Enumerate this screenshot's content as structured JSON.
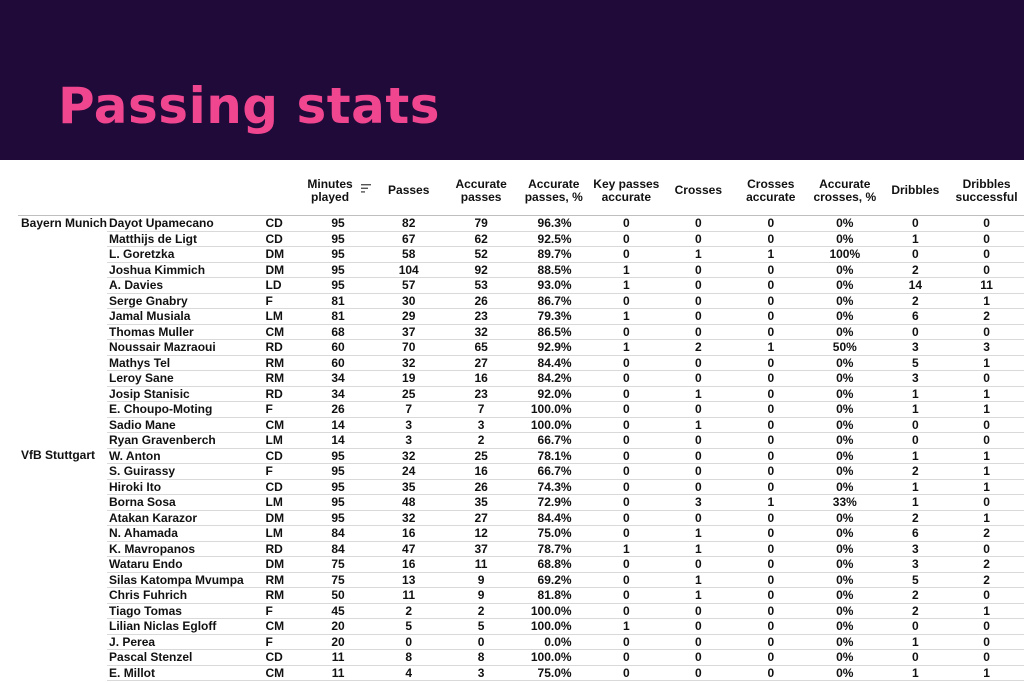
{
  "title": "Passing stats",
  "colors": {
    "header_bg": "#1f0a3a",
    "title": "#f0468f"
  },
  "columns": {
    "minutes": "Minutes played",
    "passes": "Passes",
    "accurate_passes": "Accurate passes",
    "accurate_passes_pct": "Accurate passes, %",
    "key_passes": "Key passes accurate",
    "crosses": "Crosses",
    "crosses_accurate": "Crosses accurate",
    "accurate_crosses_pct": "Accurate crosses, %",
    "dribbles": "Dribbles",
    "dribbles_successful": "Dribbles successful"
  },
  "sort_icon": "sort-descending-icon",
  "teams": [
    {
      "name": "Bayern Munich",
      "players": [
        {
          "name": "Dayot Upamecano",
          "pos": "CD",
          "min": "95",
          "passes": "82",
          "acc": "79",
          "acc_pct": "96.3%",
          "key": "0",
          "crosses": "0",
          "cross_acc": "0",
          "cross_pct": "0%",
          "drib": "0",
          "drib_succ": "0"
        },
        {
          "name": "Matthijs de Ligt",
          "pos": "CD",
          "min": "95",
          "passes": "67",
          "acc": "62",
          "acc_pct": "92.5%",
          "key": "0",
          "crosses": "0",
          "cross_acc": "0",
          "cross_pct": "0%",
          "drib": "1",
          "drib_succ": "0"
        },
        {
          "name": "L. Goretzka",
          "pos": "DM",
          "min": "95",
          "passes": "58",
          "acc": "52",
          "acc_pct": "89.7%",
          "key": "0",
          "crosses": "1",
          "cross_acc": "1",
          "cross_pct": "100%",
          "drib": "0",
          "drib_succ": "0"
        },
        {
          "name": "Joshua Kimmich",
          "pos": "DM",
          "min": "95",
          "passes": "104",
          "acc": "92",
          "acc_pct": "88.5%",
          "key": "1",
          "crosses": "0",
          "cross_acc": "0",
          "cross_pct": "0%",
          "drib": "2",
          "drib_succ": "0"
        },
        {
          "name": "A. Davies",
          "pos": "LD",
          "min": "95",
          "passes": "57",
          "acc": "53",
          "acc_pct": "93.0%",
          "key": "1",
          "crosses": "0",
          "cross_acc": "0",
          "cross_pct": "0%",
          "drib": "14",
          "drib_succ": "11"
        },
        {
          "name": "Serge Gnabry",
          "pos": "F",
          "min": "81",
          "passes": "30",
          "acc": "26",
          "acc_pct": "86.7%",
          "key": "0",
          "crosses": "0",
          "cross_acc": "0",
          "cross_pct": "0%",
          "drib": "2",
          "drib_succ": "1"
        },
        {
          "name": "Jamal Musiala",
          "pos": "LM",
          "min": "81",
          "passes": "29",
          "acc": "23",
          "acc_pct": "79.3%",
          "key": "1",
          "crosses": "0",
          "cross_acc": "0",
          "cross_pct": "0%",
          "drib": "6",
          "drib_succ": "2"
        },
        {
          "name": "Thomas Muller",
          "pos": "CM",
          "min": "68",
          "passes": "37",
          "acc": "32",
          "acc_pct": "86.5%",
          "key": "0",
          "crosses": "0",
          "cross_acc": "0",
          "cross_pct": "0%",
          "drib": "0",
          "drib_succ": "0"
        },
        {
          "name": "Noussair Mazraoui",
          "pos": "RD",
          "min": "60",
          "passes": "70",
          "acc": "65",
          "acc_pct": "92.9%",
          "key": "1",
          "crosses": "2",
          "cross_acc": "1",
          "cross_pct": "50%",
          "drib": "3",
          "drib_succ": "3"
        },
        {
          "name": "Mathys Tel",
          "pos": "RM",
          "min": "60",
          "passes": "32",
          "acc": "27",
          "acc_pct": "84.4%",
          "key": "0",
          "crosses": "0",
          "cross_acc": "0",
          "cross_pct": "0%",
          "drib": "5",
          "drib_succ": "1"
        },
        {
          "name": "Leroy Sane",
          "pos": "RM",
          "min": "34",
          "passes": "19",
          "acc": "16",
          "acc_pct": "84.2%",
          "key": "0",
          "crosses": "0",
          "cross_acc": "0",
          "cross_pct": "0%",
          "drib": "3",
          "drib_succ": "0"
        },
        {
          "name": "Josip Stanisic",
          "pos": "RD",
          "min": "34",
          "passes": "25",
          "acc": "23",
          "acc_pct": "92.0%",
          "key": "0",
          "crosses": "1",
          "cross_acc": "0",
          "cross_pct": "0%",
          "drib": "1",
          "drib_succ": "1"
        },
        {
          "name": "E. Choupo-Moting",
          "pos": "F",
          "min": "26",
          "passes": "7",
          "acc": "7",
          "acc_pct": "100.0%",
          "key": "0",
          "crosses": "0",
          "cross_acc": "0",
          "cross_pct": "0%",
          "drib": "1",
          "drib_succ": "1"
        },
        {
          "name": "Sadio Mane",
          "pos": "CM",
          "min": "14",
          "passes": "3",
          "acc": "3",
          "acc_pct": "100.0%",
          "key": "0",
          "crosses": "1",
          "cross_acc": "0",
          "cross_pct": "0%",
          "drib": "0",
          "drib_succ": "0"
        },
        {
          "name": "Ryan Gravenberch",
          "pos": "LM",
          "min": "14",
          "passes": "3",
          "acc": "2",
          "acc_pct": "66.7%",
          "key": "0",
          "crosses": "0",
          "cross_acc": "0",
          "cross_pct": "0%",
          "drib": "0",
          "drib_succ": "0"
        }
      ]
    },
    {
      "name": "VfB Stuttgart",
      "players": [
        {
          "name": "W. Anton",
          "pos": "CD",
          "min": "95",
          "passes": "32",
          "acc": "25",
          "acc_pct": "78.1%",
          "key": "0",
          "crosses": "0",
          "cross_acc": "0",
          "cross_pct": "0%",
          "drib": "1",
          "drib_succ": "1"
        },
        {
          "name": "S. Guirassy",
          "pos": "F",
          "min": "95",
          "passes": "24",
          "acc": "16",
          "acc_pct": "66.7%",
          "key": "0",
          "crosses": "0",
          "cross_acc": "0",
          "cross_pct": "0%",
          "drib": "2",
          "drib_succ": "1"
        },
        {
          "name": "Hiroki Ito",
          "pos": "CD",
          "min": "95",
          "passes": "35",
          "acc": "26",
          "acc_pct": "74.3%",
          "key": "0",
          "crosses": "0",
          "cross_acc": "0",
          "cross_pct": "0%",
          "drib": "1",
          "drib_succ": "1"
        },
        {
          "name": "Borna Sosa",
          "pos": "LM",
          "min": "95",
          "passes": "48",
          "acc": "35",
          "acc_pct": "72.9%",
          "key": "0",
          "crosses": "3",
          "cross_acc": "1",
          "cross_pct": "33%",
          "drib": "1",
          "drib_succ": "0"
        },
        {
          "name": "Atakan Karazor",
          "pos": "DM",
          "min": "95",
          "passes": "32",
          "acc": "27",
          "acc_pct": "84.4%",
          "key": "0",
          "crosses": "0",
          "cross_acc": "0",
          "cross_pct": "0%",
          "drib": "2",
          "drib_succ": "1"
        },
        {
          "name": "N. Ahamada",
          "pos": "LM",
          "min": "84",
          "passes": "16",
          "acc": "12",
          "acc_pct": "75.0%",
          "key": "0",
          "crosses": "1",
          "cross_acc": "0",
          "cross_pct": "0%",
          "drib": "6",
          "drib_succ": "2"
        },
        {
          "name": "K. Mavropanos",
          "pos": "RD",
          "min": "84",
          "passes": "47",
          "acc": "37",
          "acc_pct": "78.7%",
          "key": "1",
          "crosses": "1",
          "cross_acc": "0",
          "cross_pct": "0%",
          "drib": "3",
          "drib_succ": "0"
        },
        {
          "name": "Wataru Endo",
          "pos": "DM",
          "min": "75",
          "passes": "16",
          "acc": "11",
          "acc_pct": "68.8%",
          "key": "0",
          "crosses": "0",
          "cross_acc": "0",
          "cross_pct": "0%",
          "drib": "3",
          "drib_succ": "2"
        },
        {
          "name": "Silas Katompa Mvumpa",
          "pos": "RM",
          "min": "75",
          "passes": "13",
          "acc": "9",
          "acc_pct": "69.2%",
          "key": "0",
          "crosses": "1",
          "cross_acc": "0",
          "cross_pct": "0%",
          "drib": "5",
          "drib_succ": "2"
        },
        {
          "name": "Chris Fuhrich",
          "pos": "RM",
          "min": "50",
          "passes": "11",
          "acc": "9",
          "acc_pct": "81.8%",
          "key": "0",
          "crosses": "1",
          "cross_acc": "0",
          "cross_pct": "0%",
          "drib": "2",
          "drib_succ": "0"
        },
        {
          "name": "Tiago Tomas",
          "pos": "F",
          "min": "45",
          "passes": "2",
          "acc": "2",
          "acc_pct": "100.0%",
          "key": "0",
          "crosses": "0",
          "cross_acc": "0",
          "cross_pct": "0%",
          "drib": "2",
          "drib_succ": "1"
        },
        {
          "name": "Lilian Niclas Egloff",
          "pos": "CM",
          "min": "20",
          "passes": "5",
          "acc": "5",
          "acc_pct": "100.0%",
          "key": "1",
          "crosses": "0",
          "cross_acc": "0",
          "cross_pct": "0%",
          "drib": "0",
          "drib_succ": "0"
        },
        {
          "name": "J. Perea",
          "pos": "F",
          "min": "20",
          "passes": "0",
          "acc": "0",
          "acc_pct": "0.0%",
          "key": "0",
          "crosses": "0",
          "cross_acc": "0",
          "cross_pct": "0%",
          "drib": "1",
          "drib_succ": "0"
        },
        {
          "name": "Pascal Stenzel",
          "pos": "CD",
          "min": "11",
          "passes": "8",
          "acc": "8",
          "acc_pct": "100.0%",
          "key": "0",
          "crosses": "0",
          "cross_acc": "0",
          "cross_pct": "0%",
          "drib": "0",
          "drib_succ": "0"
        },
        {
          "name": "E. Millot",
          "pos": "CM",
          "min": "11",
          "passes": "4",
          "acc": "3",
          "acc_pct": "75.0%",
          "key": "0",
          "crosses": "0",
          "cross_acc": "0",
          "cross_pct": "0%",
          "drib": "1",
          "drib_succ": "1"
        }
      ]
    }
  ]
}
